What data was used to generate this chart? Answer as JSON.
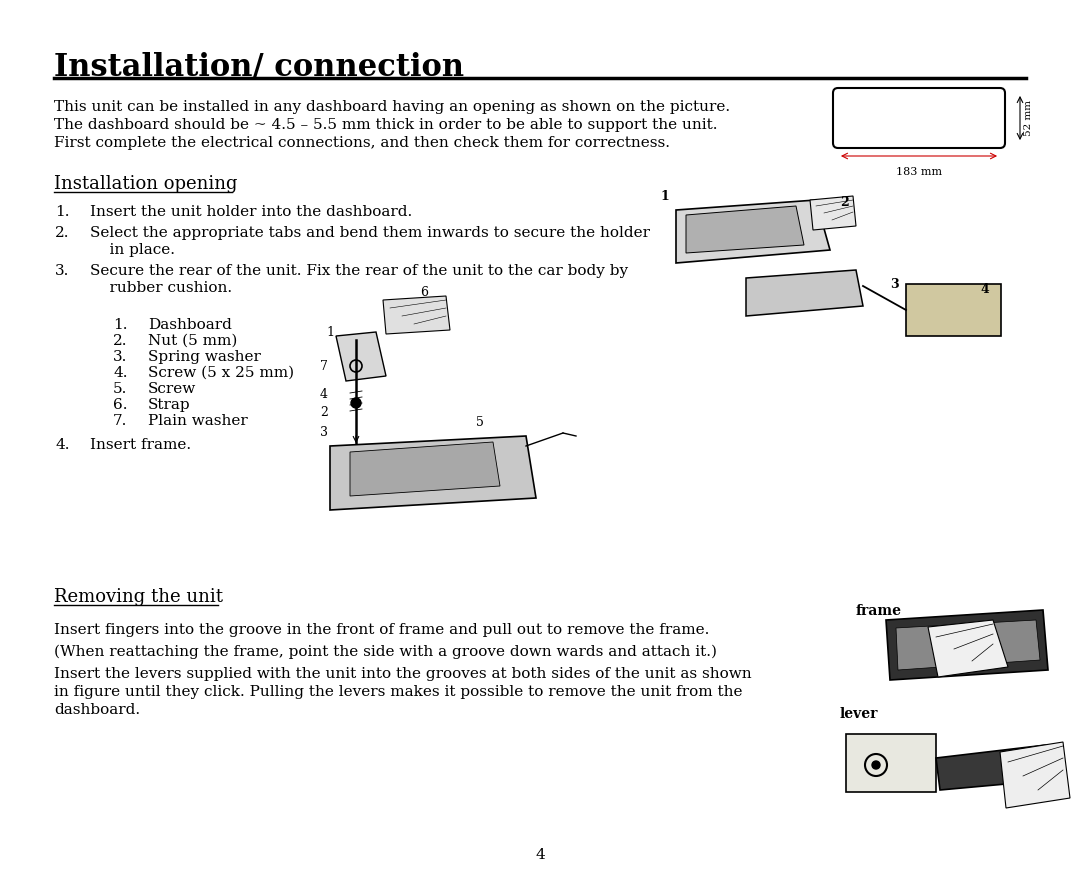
{
  "title": "Installation/ connection",
  "title_fontsize": 22,
  "title_bold": true,
  "body_fontsize": 11,
  "section_fontsize": 13,
  "background_color": "#ffffff",
  "text_color": "#000000",
  "page_number": "4",
  "intro_text": "This unit can be installed in any dashboard having an opening as shown on the picture.\nThe dashboard should be ~ 4.5 – 5.5 mm thick in order to be able to support the unit.\nFirst complete the electrical connections, and then check them for correctness.",
  "section1_heading": "Installation opening",
  "section1_items": [
    "Insert the unit holder into the dashboard.",
    "Select the appropriate tabs and bend them inwards to secure the holder\n    in place.",
    "Secure the rear of the unit. Fix the rear of the unit to the car body by\n    rubber cushion."
  ],
  "subitems": [
    "Dashboard",
    "Nut (5 mm)",
    "Spring washer",
    "Screw (5 x 25 mm)",
    "Screw",
    "Strap",
    "Plain washer"
  ],
  "item4": "Insert frame.",
  "section2_heading": "Removing the unit",
  "removing_text1": "Insert fingers into the groove in the front of frame and pull out to remove the frame.",
  "removing_text2": "(When reattaching the frame, point the side with a groove down wards and attach it.)",
  "removing_text3": "Insert the levers supplied with the unit into the grooves at both sides of the unit as shown\nin figure until they click. Pulling the levers makes it possible to remove the unit from the\ndashboard.",
  "dim_width": "183 mm",
  "dim_height": "52 mm",
  "frame_label": "frame",
  "lever_label": "lever"
}
